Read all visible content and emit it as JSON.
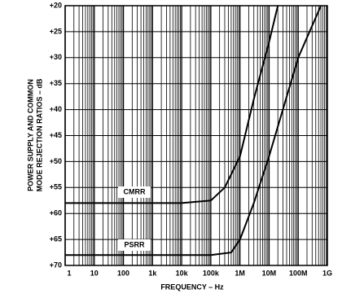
{
  "chart_data": {
    "type": "line",
    "y_label": [
      "POWER SUPPLY AND COMMON",
      "MODE REJECTION RATIOS – dB"
    ],
    "x_label": "FREQUENCY – Hz",
    "x_log": true,
    "y_inverted": true,
    "grid": true,
    "xlim": [
      1,
      1000000000
    ],
    "xticks": [
      1,
      10,
      100,
      {
        "value": 1000,
        "label": "1k"
      },
      {
        "value": 10000,
        "label": "10k"
      },
      {
        "value": 100000,
        "label": "100k"
      },
      {
        "value": 1000000,
        "label": "1M"
      },
      {
        "value": 10000000,
        "label": "10M"
      },
      {
        "value": 100000000,
        "label": "100M"
      },
      {
        "value": 1000000000,
        "label": "1G"
      }
    ],
    "ylim": [
      20,
      70
    ],
    "yticks": [
      {
        "value": 20,
        "label": "+20"
      },
      {
        "value": 25,
        "label": "+25"
      },
      {
        "value": 30,
        "label": "+30"
      },
      {
        "value": 35,
        "label": "+35"
      },
      {
        "value": 40,
        "label": "+40"
      },
      {
        "value": 45,
        "label": "+45"
      },
      {
        "value": 50,
        "label": "+50"
      },
      {
        "value": 55,
        "label": "+55"
      },
      {
        "value": 60,
        "label": "+60"
      },
      {
        "value": 65,
        "label": "+65"
      },
      {
        "value": 70,
        "label": "+70"
      }
    ],
    "series": [
      {
        "name": "CMRR",
        "color": "#000000",
        "x": [
          1,
          10,
          100,
          1000,
          10000,
          100000,
          300000,
          1000000,
          3000000,
          10000000,
          20000000
        ],
        "values": [
          58,
          58,
          58,
          58,
          58,
          57.5,
          55,
          49,
          38,
          27,
          20
        ]
      },
      {
        "name": "PSRR",
        "color": "#000000",
        "x": [
          1,
          10,
          100,
          1000,
          10000,
          100000,
          500000,
          1000000,
          3000000,
          10000000,
          100000000,
          600000000
        ],
        "values": [
          68,
          68,
          68,
          68,
          68,
          68,
          67.5,
          65,
          58,
          49,
          30,
          20
        ]
      }
    ]
  }
}
